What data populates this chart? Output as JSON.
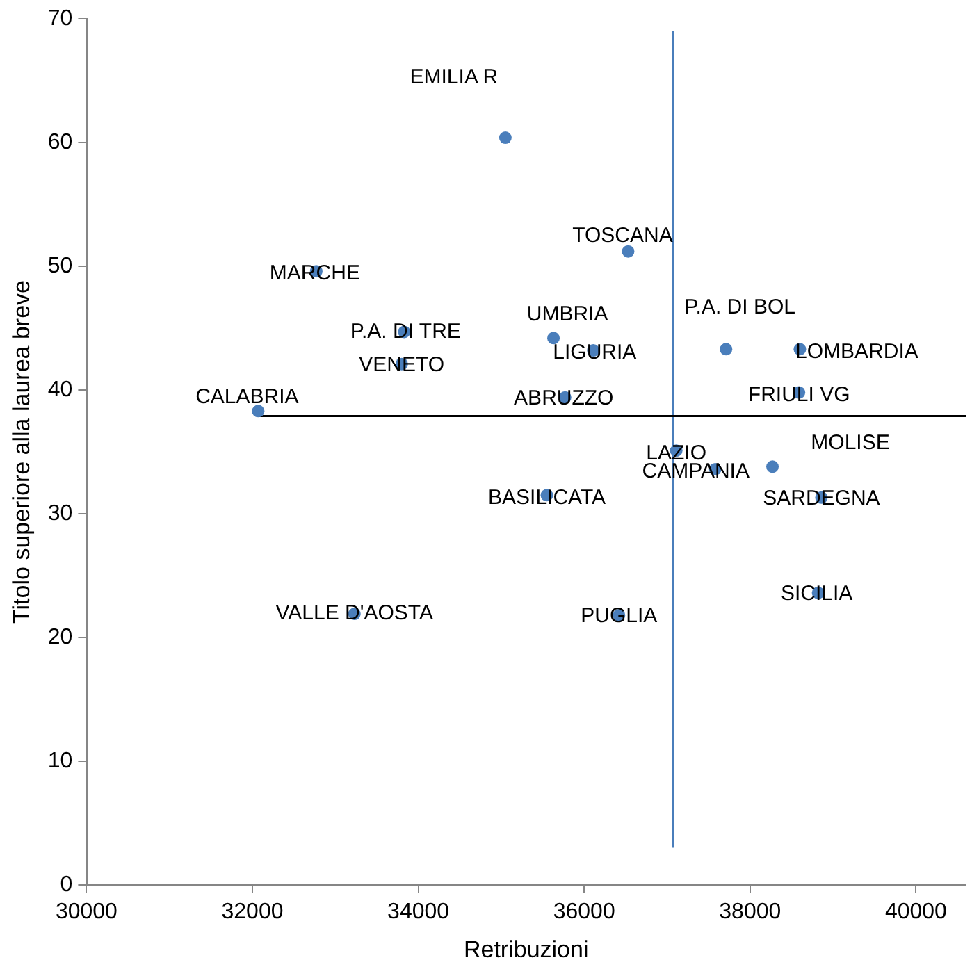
{
  "chart_data": {
    "type": "scatter",
    "xlabel": "Retribuzioni",
    "ylabel": "Titolo superiore alla laurea breve",
    "xlim": [
      30000,
      40600
    ],
    "xticks": [
      30000,
      32000,
      34000,
      36000,
      38000,
      40000
    ],
    "ylim": [
      0,
      70
    ],
    "yticks": [
      0,
      10,
      20,
      30,
      40,
      50,
      60,
      70
    ],
    "grid": false,
    "legend": false,
    "marker": "circle",
    "series": [
      {
        "color": "#4a7ebb",
        "x": [
          35050,
          36530,
          32770,
          33830,
          33800,
          32070,
          35630,
          36110,
          37710,
          38600,
          38590,
          35770,
          38270,
          37110,
          37580,
          35550,
          38860,
          33230,
          36420,
          38820
        ],
        "values": [
          60.4,
          51.2,
          49.6,
          44.7,
          42.1,
          38.3,
          44.2,
          43.2,
          43.3,
          43.3,
          39.8,
          39.4,
          33.8,
          35.1,
          33.6,
          31.5,
          31.3,
          21.9,
          21.8,
          23.6
        ]
      },
      {
        "type": "line",
        "marker": "none",
        "color": "#000000",
        "x": [
          32070,
          40600
        ],
        "values": [
          37.9,
          37.9
        ]
      },
      {
        "type": "line",
        "marker": "none",
        "color": "#4a7ebb",
        "x": [
          37070,
          37070
        ],
        "values": [
          3,
          69
        ]
      }
    ],
    "annotations": [
      {
        "text": "EMILIA R",
        "x": 35050,
        "y": 60.4
      },
      {
        "text": "TOSCANA",
        "x": 36530,
        "y": 51.2
      },
      {
        "text": "MARCHE",
        "x": 32770,
        "y": 49.6
      },
      {
        "text": "P.A. DI TRE",
        "x": 33830,
        "y": 44.7
      },
      {
        "text": "VENETO",
        "x": 33800,
        "y": 42.1
      },
      {
        "text": "CALABRIA",
        "x": 32070,
        "y": 38.3
      },
      {
        "text": "UMBRIA",
        "x": 35630,
        "y": 44.2
      },
      {
        "text": "LIGURIA",
        "x": 36110,
        "y": 43.2
      },
      {
        "text": "P.A. DI BOL",
        "x": 37710,
        "y": 43.3
      },
      {
        "text": "LOMBARDIA",
        "x": 38600,
        "y": 43.3
      },
      {
        "text": "FRIULI VG",
        "x": 38590,
        "y": 39.8
      },
      {
        "text": "ABRUZZO",
        "x": 35770,
        "y": 39.4
      },
      {
        "text": "MOLISE",
        "x": 38270,
        "y": 33.8
      },
      {
        "text": "LAZIO",
        "x": 37110,
        "y": 35.1
      },
      {
        "text": "CAMPANIA",
        "x": 37580,
        "y": 33.6
      },
      {
        "text": "BASILICATA",
        "x": 35550,
        "y": 31.5
      },
      {
        "text": "SARDEGNA",
        "x": 38860,
        "y": 31.3
      },
      {
        "text": "VALLE D'AOSTA",
        "x": 33230,
        "y": 21.9
      },
      {
        "text": "PUGLIA",
        "x": 36420,
        "y": 21.8
      },
      {
        "text": "SICILIA",
        "x": 38820,
        "y": 23.6
      }
    ]
  }
}
